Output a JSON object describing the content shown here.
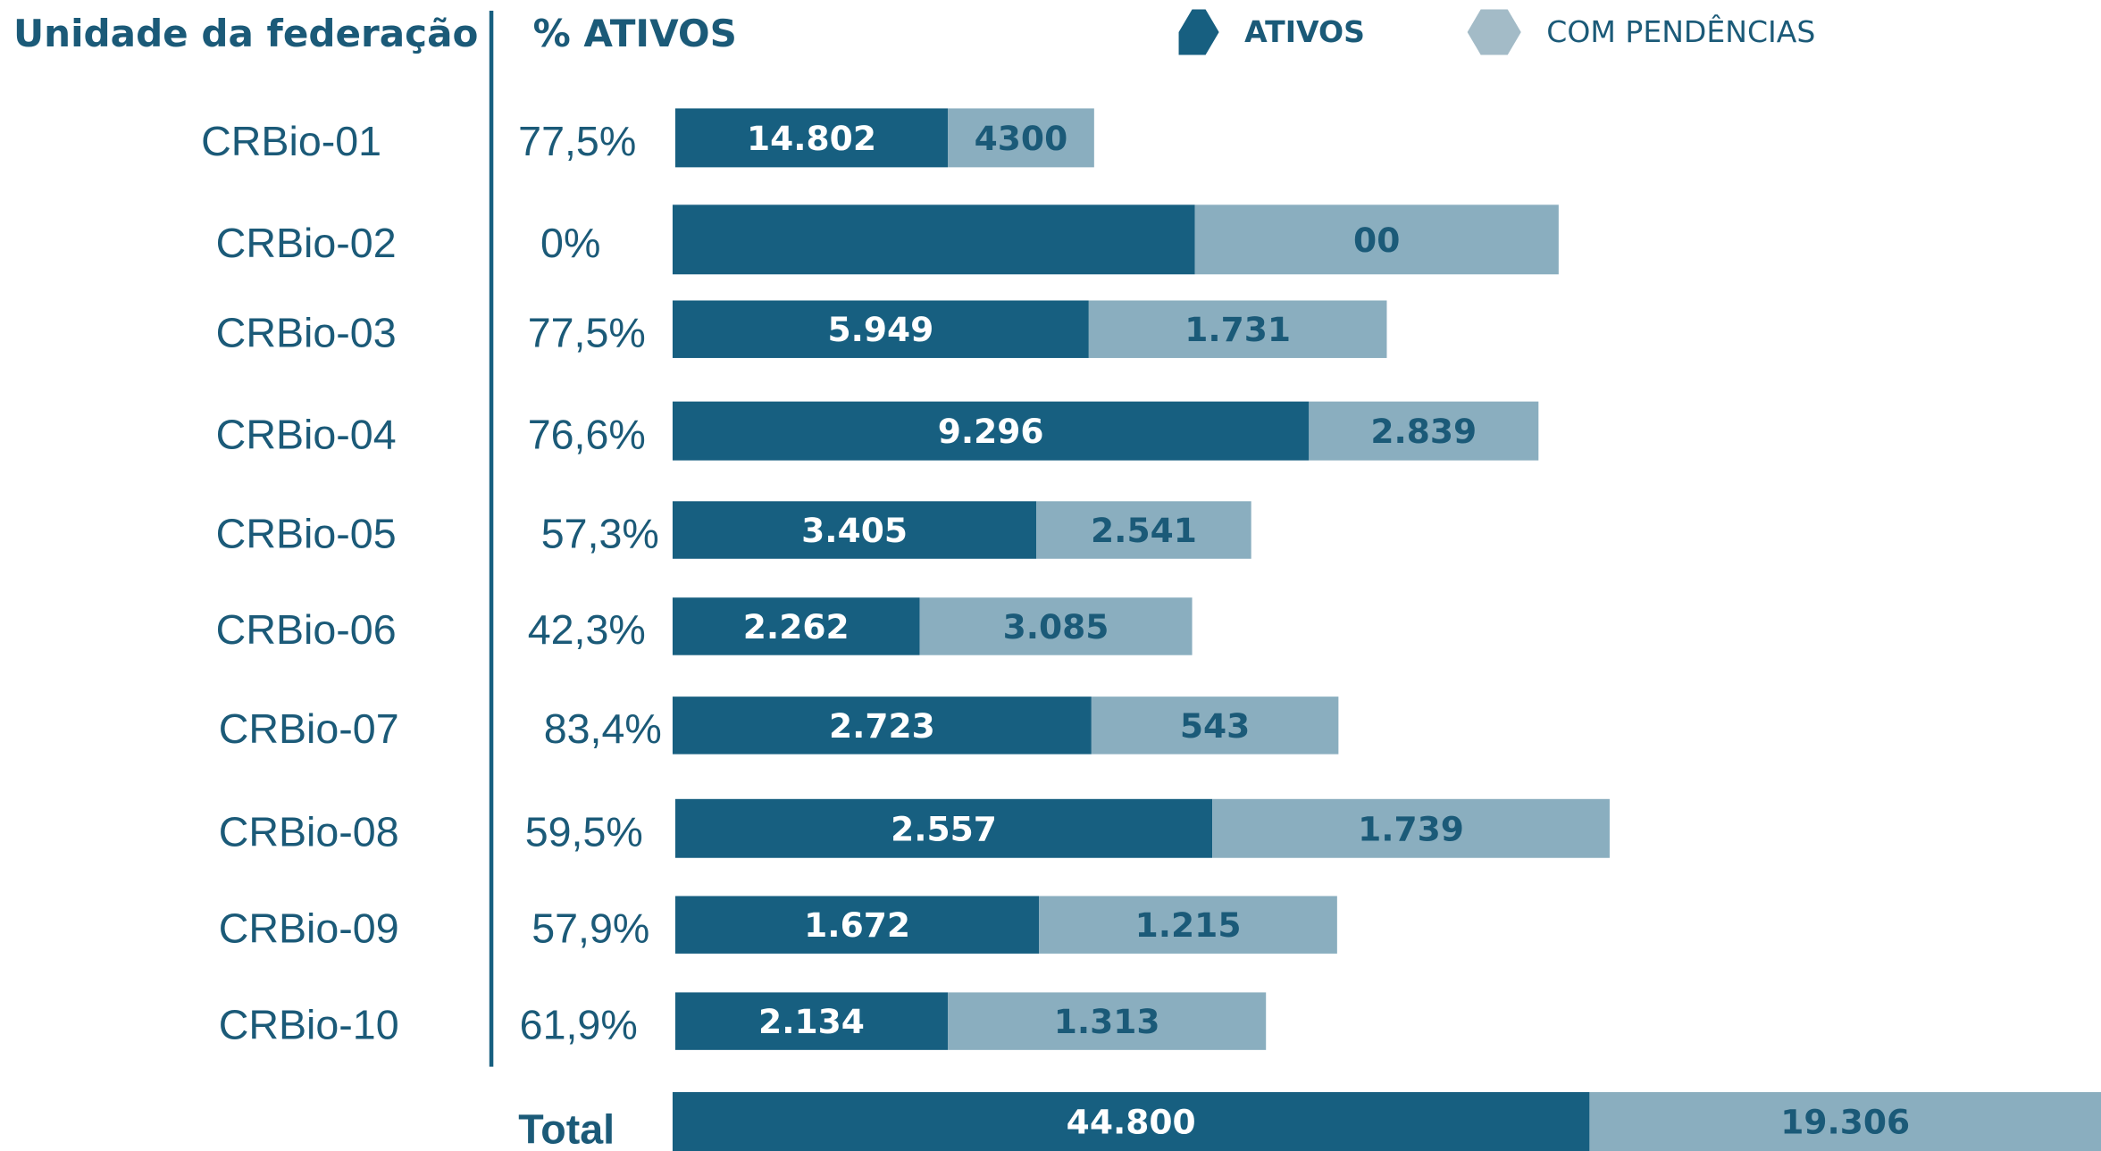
{
  "header": {
    "region": "Unidade da federação",
    "percent": "% ATIVOS"
  },
  "legend": [
    "ATIVOS",
    "COM PENDÊNCIAS"
  ],
  "rows": [
    {
      "region": "CRBio-01",
      "percent": "77,5%",
      "ativos": "14.802",
      "pendencias": "4300"
    },
    {
      "region": "CRBio-02",
      "percent": "0%",
      "pendencias": "00"
    },
    {
      "region": "CRBio-03",
      "percent": "77,5%",
      "ativos": "5.949",
      "pendencias": "1.731"
    },
    {
      "region": "CRBio-04",
      "percent": "76,6%",
      "ativos": "9.296",
      "pendencias": "2.839"
    },
    {
      "region": "CRBio-05",
      "percent": "57,3%",
      "ativos": "3.405",
      "pendencias": "2.541"
    },
    {
      "region": "CRBio-06",
      "percent": "42,3%",
      "ativos": "2.262",
      "pendencias": "3.085"
    },
    {
      "region": "CRBio-07",
      "percent": "83,4%",
      "ativos": "2.723",
      "pendencias": "543"
    },
    {
      "region": "CRBio-08",
      "percent": "59,5%",
      "ativos": "2.557",
      "pendencias": "1.739"
    },
    {
      "region": "CRBio-09",
      "percent": "57,9%",
      "ativos": "1.672",
      "pendencias": "1.215"
    },
    {
      "region": "CRBio-10",
      "percent": "61,9%",
      "ativos": "2.134",
      "pendencias": "1.313"
    }
  ],
  "total": {
    "label": "Total",
    "ativos": "44.800",
    "pendencias": "19.306"
  }
}
